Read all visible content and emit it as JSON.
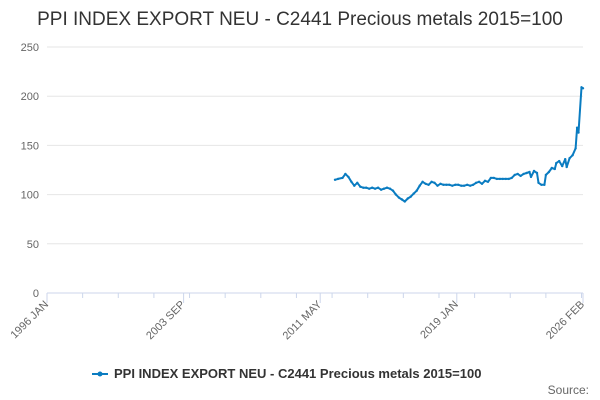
{
  "chart_data": {
    "type": "line",
    "title": "PPI INDEX EXPORT NEU - C2441 Precious metals 2015=100",
    "xlabel": "",
    "ylabel": "",
    "ylim": [
      0,
      250
    ],
    "yticks": [
      0,
      50,
      100,
      150,
      200,
      250
    ],
    "xlim": [
      "1996-01",
      "2026-02"
    ],
    "xticks": [
      {
        "label": "1996 JAN",
        "date": "1996-01"
      },
      {
        "label": "2003 SEP",
        "date": "2003-09"
      },
      {
        "label": "2011 MAY",
        "date": "2011-05"
      },
      {
        "label": "2019 JAN",
        "date": "2019-01"
      },
      {
        "label": "2026 FEB",
        "date": "2026-02"
      }
    ],
    "grid": "horizontal",
    "legend_position": "bottom",
    "color": "#0a7cc1",
    "credits": "Source:",
    "series": [
      {
        "name": "PPI INDEX EXPORT NEU - C2441 Precious metals 2015=100",
        "points": [
          [
            "2012-03",
            115
          ],
          [
            "2012-05",
            116
          ],
          [
            "2012-08",
            117
          ],
          [
            "2012-10",
            121
          ],
          [
            "2012-12",
            118
          ],
          [
            "2013-02",
            113
          ],
          [
            "2013-04",
            109
          ],
          [
            "2013-06",
            112
          ],
          [
            "2013-08",
            108
          ],
          [
            "2013-10",
            107
          ],
          [
            "2013-12",
            107
          ],
          [
            "2014-02",
            106
          ],
          [
            "2014-04",
            107
          ],
          [
            "2014-06",
            106
          ],
          [
            "2014-08",
            107
          ],
          [
            "2014-10",
            105
          ],
          [
            "2014-12",
            106
          ],
          [
            "2015-02",
            107
          ],
          [
            "2015-04",
            106
          ],
          [
            "2015-06",
            104
          ],
          [
            "2015-08",
            100
          ],
          [
            "2015-10",
            97
          ],
          [
            "2015-12",
            95
          ],
          [
            "2016-02",
            93
          ],
          [
            "2016-04",
            96
          ],
          [
            "2016-06",
            98
          ],
          [
            "2016-08",
            101
          ],
          [
            "2016-10",
            104
          ],
          [
            "2016-12",
            109
          ],
          [
            "2017-02",
            113
          ],
          [
            "2017-04",
            111
          ],
          [
            "2017-06",
            110
          ],
          [
            "2017-08",
            113
          ],
          [
            "2017-10",
            112
          ],
          [
            "2017-12",
            109
          ],
          [
            "2018-02",
            111
          ],
          [
            "2018-04",
            110
          ],
          [
            "2018-06",
            110
          ],
          [
            "2018-08",
            110
          ],
          [
            "2018-10",
            109
          ],
          [
            "2018-12",
            110
          ],
          [
            "2019-02",
            110
          ],
          [
            "2019-04",
            109
          ],
          [
            "2019-06",
            109
          ],
          [
            "2019-08",
            110
          ],
          [
            "2019-10",
            109
          ],
          [
            "2019-12",
            110
          ],
          [
            "2020-02",
            112
          ],
          [
            "2020-04",
            113
          ],
          [
            "2020-06",
            111
          ],
          [
            "2020-08",
            114
          ],
          [
            "2020-10",
            113
          ],
          [
            "2020-12",
            117
          ],
          [
            "2021-02",
            117
          ],
          [
            "2021-04",
            116
          ],
          [
            "2021-06",
            116
          ],
          [
            "2021-08",
            116
          ],
          [
            "2021-10",
            116
          ],
          [
            "2021-12",
            116
          ],
          [
            "2022-02",
            117
          ],
          [
            "2022-04",
            120
          ],
          [
            "2022-06",
            121
          ],
          [
            "2022-08",
            119
          ],
          [
            "2022-10",
            121
          ],
          [
            "2022-12",
            122
          ],
          [
            "2023-02",
            123
          ],
          [
            "2023-03",
            118
          ],
          [
            "2023-05",
            124
          ],
          [
            "2023-07",
            122
          ],
          [
            "2023-08",
            112
          ],
          [
            "2023-10",
            110
          ],
          [
            "2023-12",
            110
          ],
          [
            "2024-01",
            120
          ],
          [
            "2024-03",
            123
          ],
          [
            "2024-05",
            127
          ],
          [
            "2024-07",
            126
          ],
          [
            "2024-08",
            132
          ],
          [
            "2024-10",
            134
          ],
          [
            "2024-12",
            129
          ],
          [
            "2025-02",
            136
          ],
          [
            "2025-03",
            128
          ],
          [
            "2025-05",
            137
          ],
          [
            "2025-07",
            140
          ],
          [
            "2025-09",
            147
          ],
          [
            "2025-10",
            168
          ],
          [
            "2025-11",
            163
          ],
          [
            "2026-01",
            209
          ],
          [
            "2026-02",
            208
          ]
        ]
      }
    ]
  }
}
